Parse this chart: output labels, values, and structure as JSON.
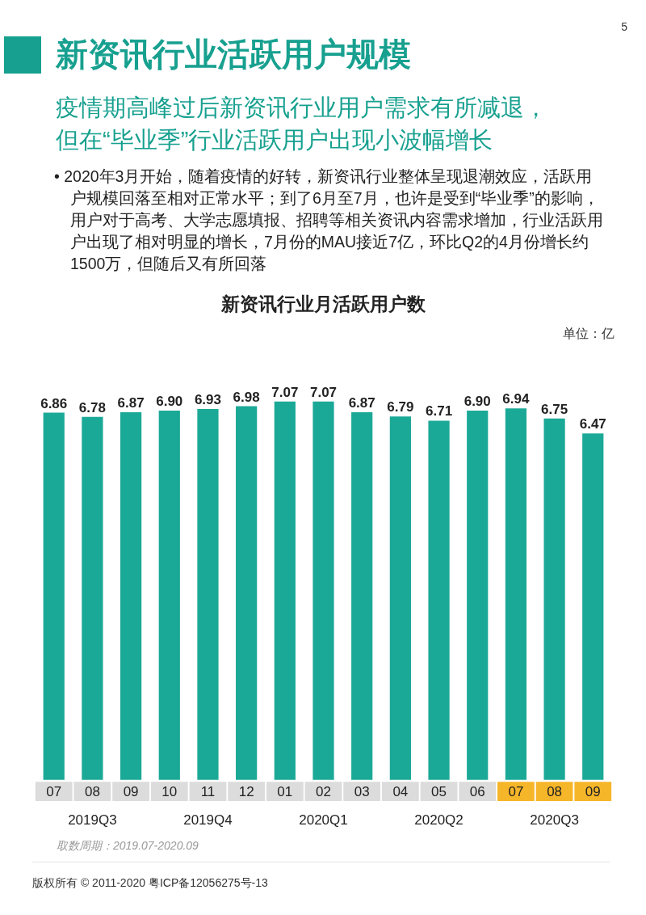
{
  "chart_data": {
    "type": "bar",
    "title": "新资讯行业月活跃用户数",
    "subtitle": "疫情期高峰过后新资讯行业用户需求有所减退，但在“毕业季”行业活跃用户出现小波幅增长",
    "categories": [
      "07",
      "08",
      "09",
      "10",
      "11",
      "12",
      "01",
      "02",
      "03",
      "04",
      "05",
      "06",
      "07",
      "08",
      "09"
    ],
    "values": [
      6.86,
      6.78,
      6.87,
      6.9,
      6.93,
      6.98,
      7.07,
      7.07,
      6.87,
      6.79,
      6.71,
      6.9,
      6.94,
      6.75,
      6.47
    ],
    "color": "#1ba997",
    "value_labels": [
      "6.86",
      "6.78",
      "6.87",
      "6.90",
      "6.93",
      "6.98",
      "7.07",
      "7.07",
      "6.87",
      "6.79",
      "6.71",
      "6.90",
      "6.94",
      "6.75",
      "6.47"
    ],
    "grid": false,
    "annotations": [
      "5",
      "新资讯行业活跃用户规模",
      "• 2020年3月开始，随着疫情的好转，新资讯行业整体呈现退潮效应，活跃用户规模回落至相对正常水平；到了6月至7月，也许是受到“毕业季”的影响，用户对于高考、大学志愿填报、招聘等相关资讯内容需求增加，行业活跃用户出现了相对明显的增长，7月份的MAU接近7亿，环比Q2的4月份增长约1500万，但随后又有所回落",
      "单位：亿",
      "2019Q3",
      "2019Q4",
      "2020Q1",
      "2020Q2",
      "2020Q3",
      "取数周期：2019.07-2020.09",
      "版权所有 © 2011-2020 粤ICP备12056275号-13"
    ]
  }
}
